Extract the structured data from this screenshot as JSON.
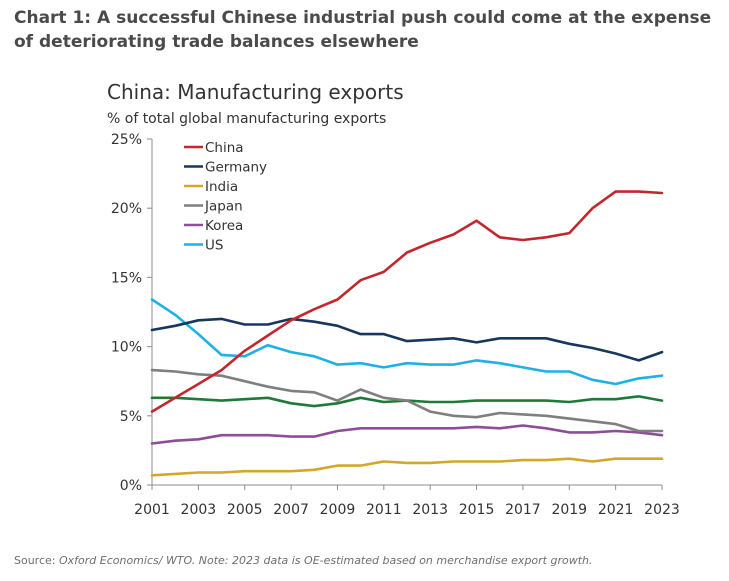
{
  "headline": "Chart 1: A successful Chinese industrial push could come at the expense of deteriorating trade balances elsewhere",
  "source_label": "Source: ",
  "source_text": "Oxford Economics/ WTO. Note: 2023 data is OE-estimated based on merchandise export growth.",
  "chart_data": {
    "type": "line",
    "title": "China: Manufacturing exports",
    "subtitle": "% of total global manufacturing exports",
    "xlabel": "",
    "ylabel": "",
    "x": [
      2001,
      2002,
      2003,
      2004,
      2005,
      2006,
      2007,
      2008,
      2009,
      2010,
      2011,
      2012,
      2013,
      2014,
      2015,
      2016,
      2017,
      2018,
      2019,
      2020,
      2021,
      2022,
      2023
    ],
    "x_ticks": [
      "2001",
      "2003",
      "2005",
      "2007",
      "2009",
      "2011",
      "2013",
      "2015",
      "2017",
      "2019",
      "2021",
      "2023"
    ],
    "ylim": [
      0,
      25
    ],
    "y_ticks": [
      "0%",
      "5%",
      "10%",
      "15%",
      "20%",
      "25%"
    ],
    "grid": false,
    "legend_position": "top-left",
    "series": [
      {
        "name": "China",
        "color": "#c0282e",
        "values": [
          5.3,
          6.3,
          7.3,
          8.3,
          9.7,
          10.8,
          11.9,
          12.7,
          13.4,
          14.8,
          15.4,
          16.8,
          17.5,
          18.1,
          19.1,
          17.9,
          17.7,
          17.9,
          18.2,
          20.0,
          21.2,
          21.2,
          21.1
        ]
      },
      {
        "name": "Germany",
        "color": "#17375e",
        "values": [
          11.2,
          11.5,
          11.9,
          12.0,
          11.6,
          11.6,
          12.0,
          11.8,
          11.5,
          10.9,
          10.9,
          10.4,
          10.5,
          10.6,
          10.3,
          10.6,
          10.6,
          10.6,
          10.2,
          9.9,
          9.5,
          9.0,
          9.6
        ]
      },
      {
        "name": "India",
        "color": "#d4a72c",
        "values": [
          0.7,
          0.8,
          0.9,
          0.9,
          1.0,
          1.0,
          1.0,
          1.1,
          1.4,
          1.4,
          1.7,
          1.6,
          1.6,
          1.7,
          1.7,
          1.7,
          1.8,
          1.8,
          1.9,
          1.7,
          1.9,
          1.9,
          1.9
        ]
      },
      {
        "name": "Japan",
        "color": "#7f7f7f",
        "values": [
          8.3,
          8.2,
          8.0,
          7.9,
          7.5,
          7.1,
          6.8,
          6.7,
          6.1,
          6.9,
          6.3,
          6.1,
          5.3,
          5.0,
          4.9,
          5.2,
          5.1,
          5.0,
          4.8,
          4.6,
          4.4,
          3.9,
          3.9
        ]
      },
      {
        "name": "Korea",
        "color": "#8e4d99",
        "values": [
          3.0,
          3.2,
          3.3,
          3.6,
          3.6,
          3.6,
          3.5,
          3.5,
          3.9,
          4.1,
          4.1,
          4.1,
          4.1,
          4.1,
          4.2,
          4.1,
          4.3,
          4.1,
          3.8,
          3.8,
          3.9,
          3.8,
          3.6
        ]
      },
      {
        "name": "US",
        "color": "#1fb1e6",
        "values": [
          13.4,
          12.3,
          10.9,
          9.4,
          9.3,
          10.1,
          9.6,
          9.3,
          8.7,
          8.8,
          8.5,
          8.8,
          8.7,
          8.7,
          9.0,
          8.8,
          8.5,
          8.2,
          8.2,
          7.6,
          7.3,
          7.7,
          7.9
        ]
      },
      {
        "name": "",
        "color": "#1f7a3a",
        "values": [
          6.3,
          6.3,
          6.2,
          6.1,
          6.2,
          6.3,
          5.9,
          5.7,
          5.9,
          6.3,
          6.0,
          6.1,
          6.0,
          6.0,
          6.1,
          6.1,
          6.1,
          6.1,
          6.0,
          6.2,
          6.2,
          6.4,
          6.1
        ]
      }
    ]
  }
}
